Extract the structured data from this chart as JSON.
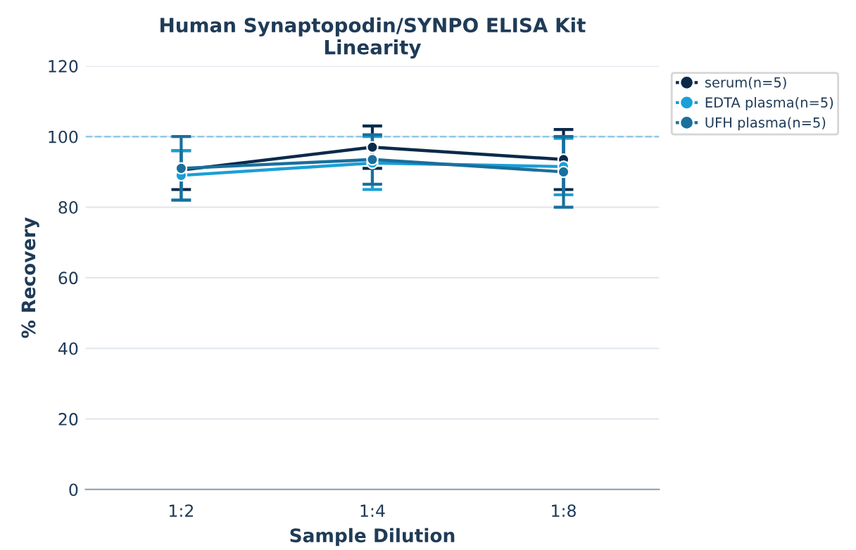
{
  "chart_data": {
    "type": "line",
    "title": "Human Synaptopodin/SYNPO ELISA Kit\nLinearity",
    "xlabel": "Sample Dilution",
    "ylabel": "% Recovery",
    "categories": [
      "1:2",
      "1:4",
      "1:8"
    ],
    "series": [
      {
        "name": "serum(n=5)",
        "color": "#0b2a4a",
        "values": [
          90.5,
          97,
          93.5
        ],
        "errors": [
          5.5,
          6,
          8.5
        ]
      },
      {
        "name": "EDTA plasma(n=5)",
        "color": "#1a9fd6",
        "values": [
          89,
          92.5,
          91.5
        ],
        "errors": [
          7,
          7.5,
          8
        ]
      },
      {
        "name": "UFH plasma(n=5)",
        "color": "#1a6f9c",
        "values": [
          91,
          93.5,
          90
        ],
        "errors": [
          9,
          7,
          10
        ]
      }
    ],
    "ylim": [
      0,
      120
    ],
    "yticks": [
      0,
      20,
      40,
      60,
      80,
      100,
      120
    ],
    "grid": "y",
    "legend": "top right",
    "marker": "circle",
    "line_style": "solid",
    "ref_lines": [
      {
        "axis": "y",
        "value": 100,
        "color": "#8ecae6",
        "line_style": "dashed"
      }
    ]
  }
}
